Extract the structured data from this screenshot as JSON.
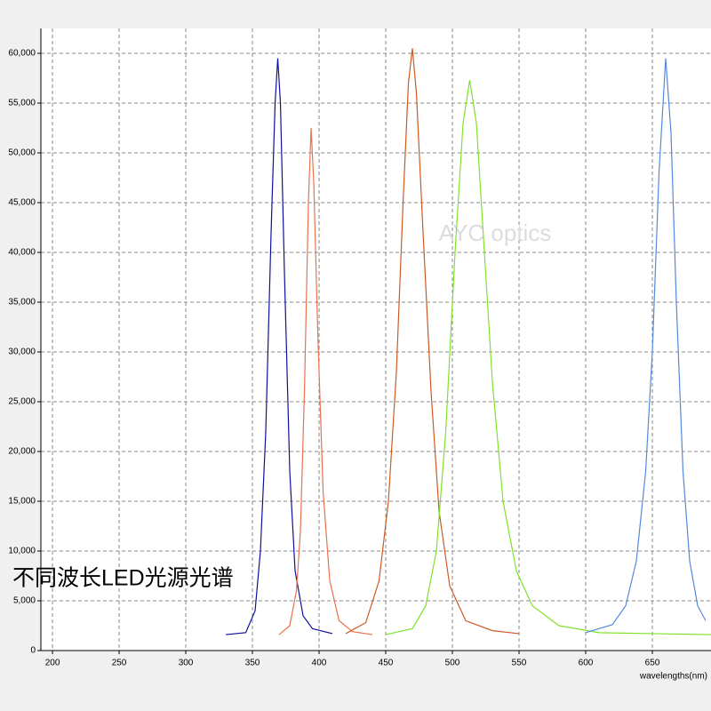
{
  "chart_data": {
    "type": "line",
    "title": "不同波长LED光源光谱",
    "watermark": "AYC optics",
    "x_label": "wavelengths(nm)",
    "xlim": [
      191.3,
      694
    ],
    "ylim": [
      0,
      62500
    ],
    "xticks": [
      200,
      250,
      300,
      350,
      400,
      450,
      500,
      550,
      600,
      650
    ],
    "yticks": [
      0,
      {
        "value": 5000,
        "label": "5,000"
      },
      {
        "value": 10000,
        "label": "10,000"
      },
      {
        "value": 15000,
        "label": "15,000"
      },
      {
        "value": 20000,
        "label": "20,000"
      },
      {
        "value": 25000,
        "label": "25,000"
      },
      {
        "value": 30000,
        "label": "30,000"
      },
      {
        "value": 35000,
        "label": "35,000"
      },
      {
        "value": 40000,
        "label": "40,000"
      },
      {
        "value": 45000,
        "label": "45,000"
      },
      {
        "value": 50000,
        "label": "50,000"
      },
      {
        "value": 55000,
        "label": "55,000"
      },
      {
        "value": 60000,
        "label": "60,000"
      }
    ],
    "grid": true,
    "series": [
      {
        "color": "#10109a",
        "x": [
          330,
          345,
          352,
          356,
          360,
          364,
          367,
          369,
          371,
          374,
          378,
          382,
          388,
          395,
          410
        ],
        "values": [
          1600,
          1800,
          4000,
          10000,
          22000,
          42000,
          55000,
          59500,
          55000,
          38000,
          18000,
          8000,
          3500,
          2200,
          1700
        ]
      },
      {
        "color": "#e8734f",
        "x": [
          370,
          378,
          383,
          386,
          389,
          392,
          394,
          396,
          399,
          403,
          408,
          415,
          425,
          440
        ],
        "values": [
          1600,
          2500,
          6000,
          12000,
          26000,
          45000,
          52500,
          47000,
          32000,
          16000,
          7000,
          3000,
          1900,
          1600
        ]
      },
      {
        "color": "#cc5a22",
        "x": [
          420,
          435,
          445,
          452,
          458,
          463,
          467,
          470,
          473,
          478,
          484,
          490,
          498,
          510,
          530,
          550
        ],
        "values": [
          1700,
          2800,
          7000,
          15000,
          28000,
          45000,
          57000,
          60500,
          56000,
          42000,
          26000,
          14000,
          6500,
          3000,
          2000,
          1700
        ]
      },
      {
        "color": "#7ee22a",
        "x": [
          450,
          470,
          480,
          488,
          495,
          502,
          508,
          513,
          518,
          524,
          530,
          538,
          548,
          560,
          580,
          610,
          650,
          694
        ],
        "values": [
          1600,
          2200,
          4500,
          10000,
          22000,
          40000,
          53000,
          57300,
          53000,
          40000,
          27000,
          15000,
          8000,
          4500,
          2500,
          1800,
          1700,
          1600
        ]
      },
      {
        "color": "#5588dd",
        "x": [
          600,
          620,
          630,
          638,
          645,
          650,
          655,
          660,
          664,
          668,
          673,
          678,
          684,
          690
        ],
        "values": [
          1800,
          2600,
          4500,
          9000,
          18000,
          30000,
          48000,
          59500,
          52000,
          35000,
          18000,
          9000,
          4500,
          3000
        ]
      }
    ]
  }
}
